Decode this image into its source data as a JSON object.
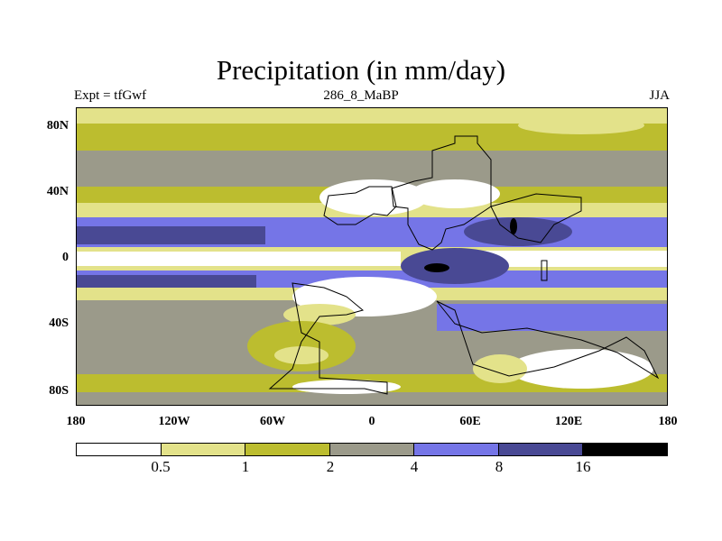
{
  "header": {
    "title": "Precipitation (in mm/day)",
    "left": "Expt = tfGwf",
    "center": "286_8_MaBP",
    "right": "JJA"
  },
  "axes": {
    "y_ticks": [
      "80N",
      "40N",
      "0",
      "40S",
      "80S"
    ],
    "x_ticks": [
      "180",
      "120W",
      "60W",
      "0",
      "60E",
      "120E",
      "180"
    ]
  },
  "colorbar": {
    "colors": [
      "#ffffff",
      "#e3e28a",
      "#bcbd2f",
      "#9b9a8a",
      "#7575e7",
      "#494994",
      "#000000"
    ],
    "levels": [
      "0.5",
      "1",
      "2",
      "4",
      "8",
      "16"
    ]
  },
  "map_colors": {
    "dry": "#ffffff",
    "light": "#e3e28a",
    "yellow": "#bcbd2f",
    "gray": "#9b9a8a",
    "blue": "#7575e7",
    "dark": "#494994",
    "black": "#000000"
  }
}
